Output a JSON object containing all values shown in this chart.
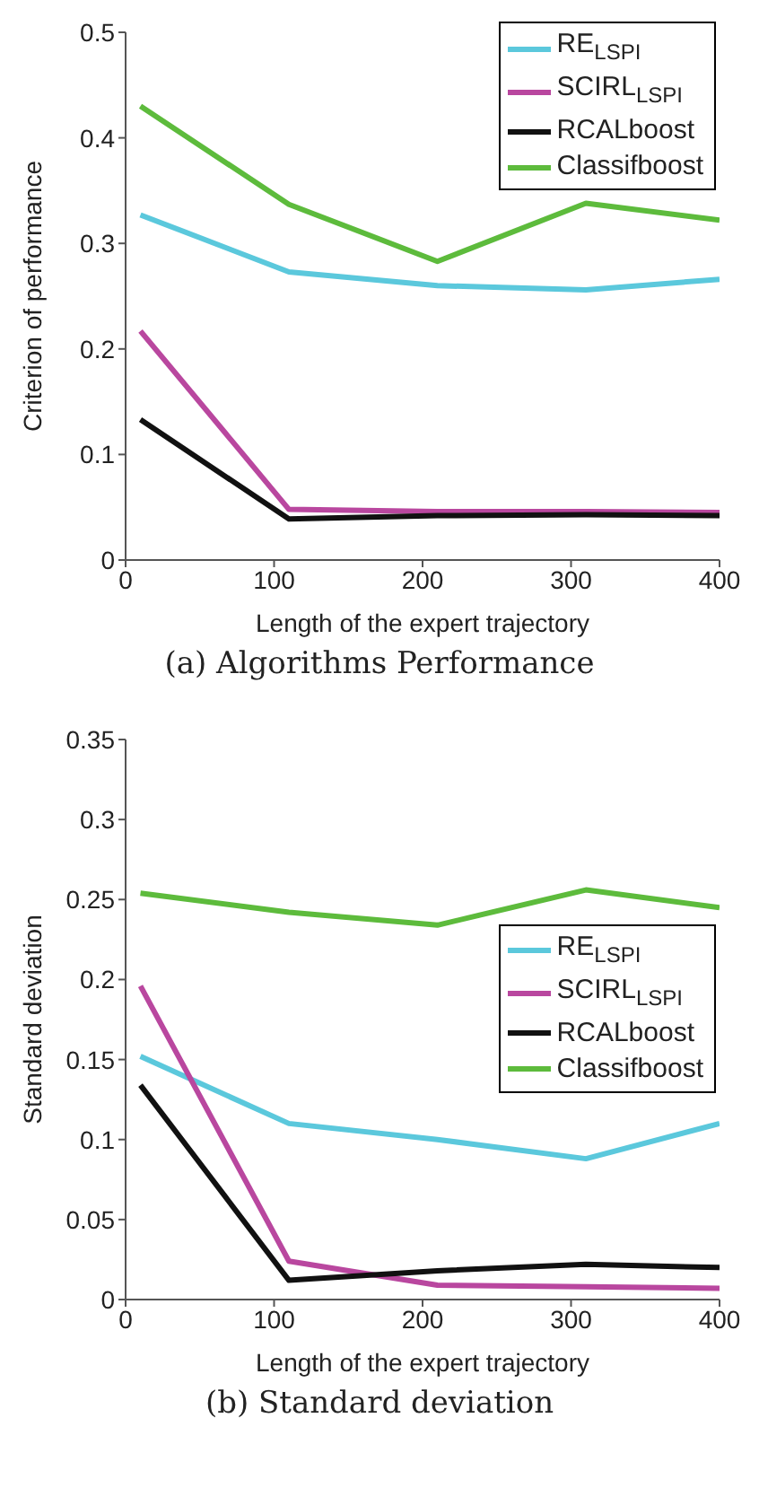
{
  "chart_data": [
    {
      "type": "line",
      "title": "(a) Algorithms Performance",
      "xlabel": "Length of the expert trajectory",
      "ylabel": "Criterion of performance",
      "x": [
        10,
        110,
        210,
        310,
        400
      ],
      "xlim": [
        0,
        400
      ],
      "xticks": [
        0,
        100,
        200,
        300,
        400
      ],
      "ylim": [
        0,
        0.5
      ],
      "yticks": [
        0,
        0.1,
        0.2,
        0.3,
        0.4,
        0.5
      ],
      "grid": false,
      "legend": "top right",
      "series": [
        {
          "name": "RE$_{LSPI}$",
          "color": "#5bc8dc",
          "values": [
            0.327,
            0.273,
            0.26,
            0.256,
            0.266
          ]
        },
        {
          "name": "SCIRL$_{LSPI}$",
          "color": "#b9479f",
          "values": [
            0.217,
            0.048,
            0.046,
            0.046,
            0.045
          ]
        },
        {
          "name": "RCALboost",
          "color": "#111111",
          "values": [
            0.133,
            0.039,
            0.042,
            0.043,
            0.042
          ]
        },
        {
          "name": "Classifboost",
          "color": "#5dbb3c",
          "values": [
            0.43,
            0.337,
            0.283,
            0.338,
            0.322
          ]
        }
      ]
    },
    {
      "type": "line",
      "title": "(b) Standard deviation",
      "xlabel": "Length of the expert trajectory",
      "ylabel": "Standard deviation",
      "x": [
        10,
        110,
        210,
        310,
        400
      ],
      "xlim": [
        0,
        400
      ],
      "xticks": [
        0,
        100,
        200,
        300,
        400
      ],
      "ylim": [
        0,
        0.35
      ],
      "yticks": [
        0,
        0.05,
        0.1,
        0.15,
        0.2,
        0.25,
        0.3,
        0.35
      ],
      "grid": false,
      "legend": "right",
      "series": [
        {
          "name": "RE$_{LSPI}$",
          "color": "#5bc8dc",
          "values": [
            0.152,
            0.11,
            0.1,
            0.088,
            0.11
          ]
        },
        {
          "name": "SCIRL$_{LSPI}$",
          "color": "#b9479f",
          "values": [
            0.196,
            0.024,
            0.009,
            0.008,
            0.007
          ]
        },
        {
          "name": "RCALboost",
          "color": "#111111",
          "values": [
            0.134,
            0.012,
            0.018,
            0.022,
            0.02
          ]
        },
        {
          "name": "Classifboost",
          "color": "#5dbb3c",
          "values": [
            0.254,
            0.242,
            0.234,
            0.256,
            0.245
          ]
        }
      ]
    }
  ]
}
